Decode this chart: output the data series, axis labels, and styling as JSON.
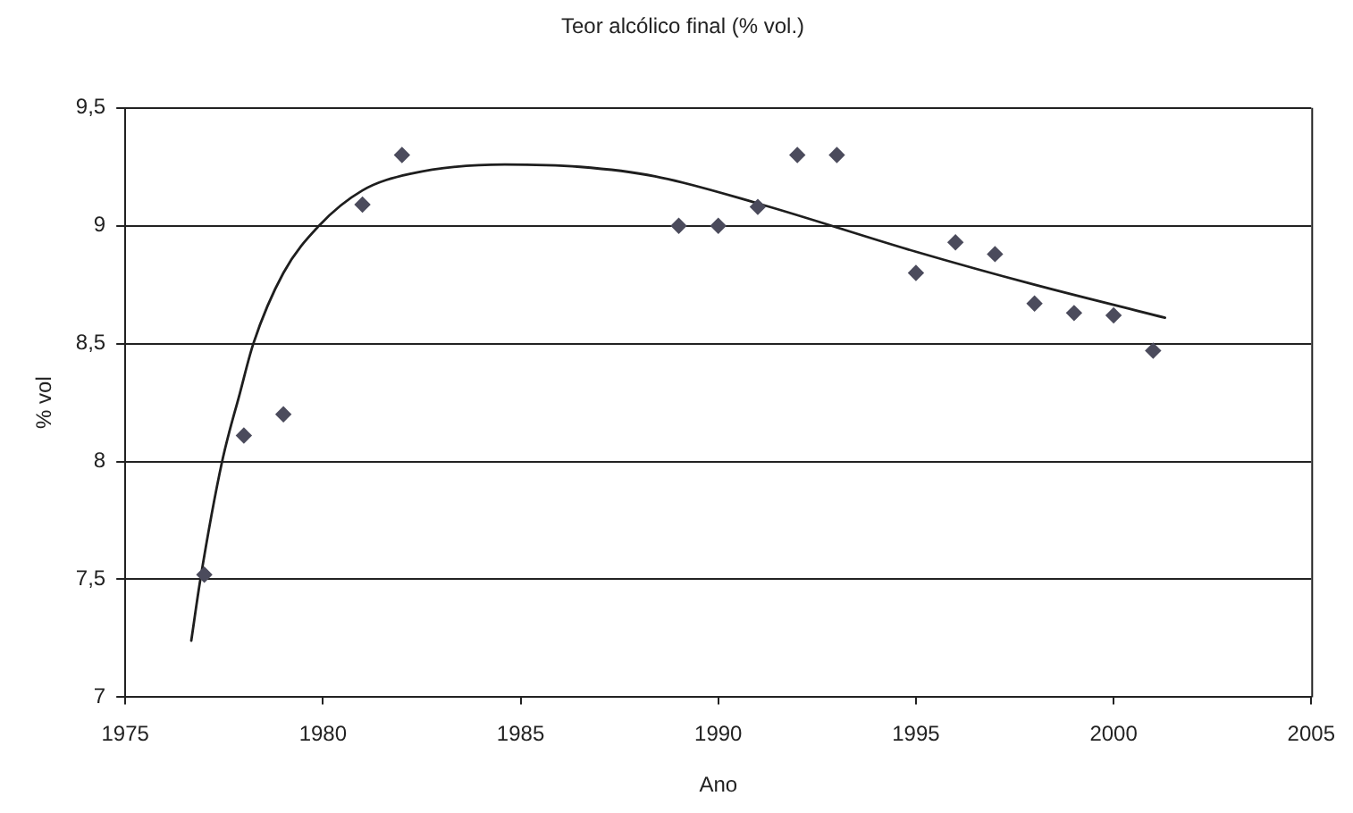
{
  "chart_data": {
    "type": "scatter",
    "title": "Teor alcólico final (% vol.)",
    "xlabel": "Ano",
    "ylabel": "% vol",
    "marker": "diamond",
    "grid": "y",
    "legend": false,
    "xlim": [
      1975,
      2005
    ],
    "xticks": [
      1975,
      1980,
      1985,
      1990,
      1995,
      2000,
      2005
    ],
    "ylim": [
      7,
      9.5
    ],
    "yticks": [
      7,
      {
        "value": 7.5,
        "label": "7,5"
      },
      8,
      {
        "value": 8.5,
        "label": "8,5"
      },
      9,
      {
        "value": 9.5,
        "label": "9,5"
      }
    ],
    "series": [
      {
        "color": "#4b4b5c",
        "x": [
          1977,
          1978,
          1979,
          1981,
          1982,
          1989,
          1990,
          1991,
          1992,
          1993,
          1995,
          1996,
          1997,
          1998,
          1999,
          2000,
          2001
        ],
        "values": [
          7.52,
          8.11,
          8.2,
          9.09,
          9.3,
          9.0,
          9.0,
          9.08,
          9.3,
          9.3,
          8.8,
          8.93,
          8.88,
          8.67,
          8.63,
          8.62,
          8.47
        ]
      },
      {
        "type": "line",
        "color": "#1e1e1e",
        "marker": "none",
        "x": [
          1976.67,
          1976.9,
          1977.45,
          1977.9,
          1978.24,
          1979.0,
          1979.9,
          1981.0,
          1982.2,
          1984.6,
          1986.5,
          1988.4,
          1991.1,
          1995.0,
          1998.0,
          2001.3
        ],
        "values": [
          7.24,
          7.5,
          8.0,
          8.29,
          8.5,
          8.8,
          9.0,
          9.15,
          9.22,
          9.26,
          9.25,
          9.21,
          9.09,
          8.89,
          8.75,
          8.61
        ]
      }
    ]
  }
}
